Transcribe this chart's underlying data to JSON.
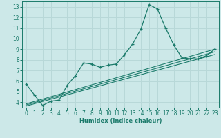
{
  "xlabel": "Humidex (Indice chaleur)",
  "bg_color": "#cce8e8",
  "grid_color": "#b8d8d8",
  "line_color": "#1a7a6a",
  "xlim": [
    -0.5,
    23.5
  ],
  "ylim": [
    3.5,
    13.5
  ],
  "xticks": [
    0,
    1,
    2,
    3,
    4,
    5,
    6,
    7,
    8,
    9,
    10,
    11,
    12,
    13,
    14,
    15,
    16,
    17,
    18,
    19,
    20,
    21,
    22,
    23
  ],
  "yticks": [
    4,
    5,
    6,
    7,
    8,
    9,
    10,
    11,
    12,
    13
  ],
  "main_x": [
    0,
    1,
    2,
    3,
    4,
    5,
    6,
    7,
    8,
    9,
    10,
    11,
    12,
    13,
    14,
    15,
    16,
    17,
    18,
    19,
    20,
    21,
    22,
    23
  ],
  "main_y": [
    5.7,
    4.7,
    3.7,
    4.1,
    4.2,
    5.6,
    6.5,
    7.7,
    7.6,
    7.3,
    7.5,
    7.6,
    8.5,
    9.5,
    10.9,
    13.2,
    12.8,
    11.0,
    9.4,
    8.2,
    8.1,
    8.1,
    8.4,
    9.0
  ],
  "line1_x": [
    0,
    23
  ],
  "line1_y": [
    3.85,
    9.0
  ],
  "line2_x": [
    0,
    23
  ],
  "line2_y": [
    3.75,
    8.75
  ],
  "line3_x": [
    0,
    23
  ],
  "line3_y": [
    3.65,
    8.5
  ]
}
